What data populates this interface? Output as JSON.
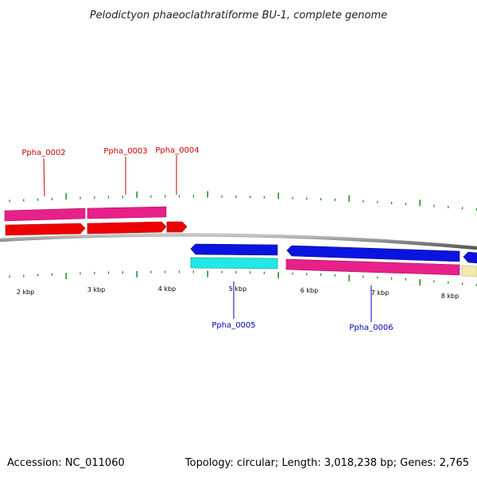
{
  "title": "Pelodictyon phaeoclathratiforme BU-1, complete genome",
  "footer": {
    "accession": "Accession: NC_011060",
    "summary": "Topology: circular; Length: 3,018,238 bp; Genes: 2,765"
  },
  "colors": {
    "backbone": "#8a8a8a",
    "tick": "#1a8a1a",
    "label_forward": "#cc0000",
    "label_reverse": "#0000bb",
    "gene_red": "#ee0000",
    "gene_pink": "#e8208a",
    "gene_blue": "#0a14e0",
    "gene_cyan": "#22e8e8",
    "gene_yellow": "#f2eaa8"
  },
  "kbp_ticks": [
    "2 kbp",
    "3 kbp",
    "4 kbp",
    "5 kbp",
    "6 kbp",
    "7 kbp",
    "8 kbp"
  ],
  "labels": {
    "ppha_0002": "Ppha_0002",
    "ppha_0003": "Ppha_0003",
    "ppha_0004": "Ppha_0004",
    "ppha_0005": "Ppha_0005",
    "ppha_0006": "Ppha_0006"
  }
}
